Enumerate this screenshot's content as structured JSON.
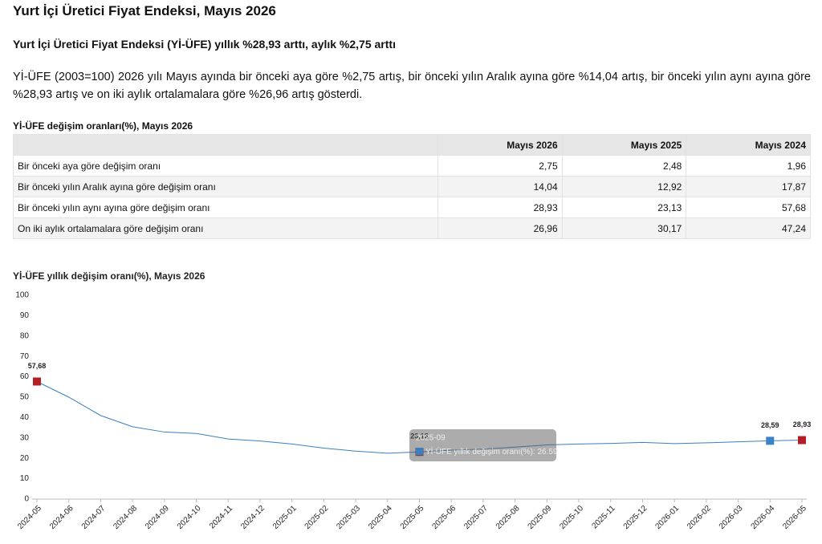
{
  "title": "Yurt İçi Üretici Fiyat Endeksi, Mayıs 2026",
  "subtitle": "Yurt İçi Üretici Fiyat Endeksi (Yİ-ÜFE) yıllık %28,93 arttı, aylık %2,75 arttı",
  "paragraph": "Yİ-ÜFE (2003=100) 2026 yılı Mayıs ayında bir önceki aya göre %2,75 artış, bir önceki yılın Aralık ayına göre %14,04 artış, bir önceki yılın aynı ayına göre %28,93 artış ve on iki aylık ortalamalara göre %26,96 artış gösterdi.",
  "table": {
    "caption": "Yİ-ÜFE değişim oranları(%), Mayıs 2026",
    "header": [
      "",
      "Mayıs 2026",
      "Mayıs 2025",
      "Mayıs 2024"
    ],
    "rows": [
      [
        "Bir önceki aya göre değişim oranı",
        "2,75",
        "2,48",
        "1,96"
      ],
      [
        "Bir önceki yılın Aralık ayına göre değişim oranı",
        "14,04",
        "12,92",
        "17,87"
      ],
      [
        "Bir önceki yılın aynı ayına göre değişim oranı",
        "28,93",
        "23,13",
        "57,68"
      ],
      [
        "On iki aylık ortalamalara göre değişim oranı",
        "26,96",
        "30,17",
        "47,24"
      ]
    ]
  },
  "chart_data": {
    "type": "line",
    "title": "Yİ-ÜFE yıllık değişim oranı(%), Mayıs 2026",
    "x": [
      "2024-05",
      "2024-06",
      "2024-07",
      "2024-08",
      "2024-09",
      "2024-10",
      "2024-11",
      "2024-12",
      "2025-01",
      "2025-02",
      "2025-03",
      "2025-04",
      "2025-05",
      "2025-06",
      "2025-07",
      "2025-08",
      "2025-09",
      "2025-10",
      "2025-11",
      "2025-12",
      "2026-01",
      "2026-02",
      "2026-03",
      "2026-04",
      "2026-05"
    ],
    "series": [
      {
        "name": "Yİ-ÜFE yıllık değişim oranı(%)",
        "color": "#3a7fc0",
        "values": [
          57.68,
          50,
          41,
          35.5,
          32.9,
          32.2,
          29.5,
          28.5,
          27,
          25,
          23.5,
          22.5,
          23.13,
          24,
          24.5,
          25.5,
          26.59,
          27,
          27.3,
          27.8,
          27.2,
          27.6,
          28.1,
          28.59,
          28.93
        ],
        "value_labels": [
          "57,68",
          null,
          null,
          null,
          null,
          null,
          null,
          null,
          null,
          null,
          null,
          null,
          "23,13",
          null,
          null,
          null,
          null,
          null,
          null,
          null,
          null,
          null,
          null,
          "28,59",
          "28,93"
        ],
        "marker_colors": [
          "#b21f24",
          null,
          null,
          null,
          null,
          null,
          null,
          null,
          null,
          null,
          null,
          null,
          "#b21f24",
          null,
          null,
          null,
          null,
          null,
          null,
          null,
          null,
          null,
          null,
          "#3a82c4",
          "#b21f24"
        ]
      }
    ],
    "ylim": [
      0,
      100
    ],
    "yticks": [
      0,
      10,
      20,
      30,
      40,
      50,
      60,
      70,
      80,
      90,
      100
    ],
    "grid": false,
    "tooltip": {
      "x_index": 16
    }
  }
}
